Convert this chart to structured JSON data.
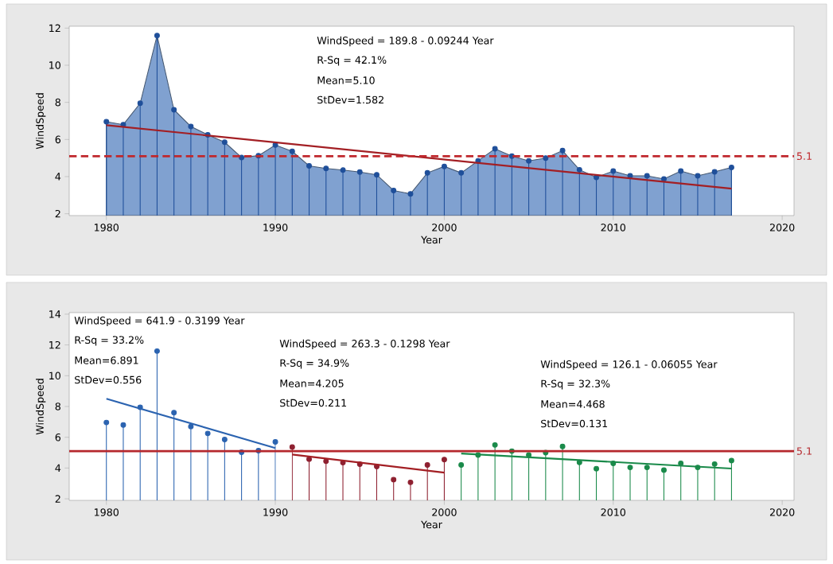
{
  "chart_data": [
    {
      "type": "area",
      "xlabel": "Year",
      "ylabel": "WindSpeed",
      "marker": "circle",
      "xlim": [
        1977.8,
        2020.7
      ],
      "ylim": [
        1.9,
        12.1
      ],
      "xticks": [
        1980,
        1990,
        2000,
        2010,
        2020
      ],
      "yticks": [
        2,
        4,
        6,
        8,
        10,
        12
      ],
      "series": [
        {
          "marker": "none",
          "color": "#80a1d0",
          "x": [
            1980,
            1981,
            1982,
            1983,
            1984,
            1985,
            1986,
            1987,
            1988,
            1989,
            1990,
            1991,
            1992,
            1993,
            1994,
            1995,
            1996,
            1997,
            1998,
            1999,
            2000,
            2001,
            2002,
            2003,
            2004,
            2005,
            2006,
            2007,
            2008,
            2009,
            2010,
            2011,
            2012,
            2013,
            2014,
            2015,
            2016,
            2017
          ],
          "values": [
            6.96,
            6.8,
            7.95,
            11.6,
            7.6,
            6.7,
            6.25,
            5.85,
            5.03,
            5.13,
            5.7,
            5.36,
            4.58,
            4.44,
            4.35,
            4.25,
            4.1,
            3.25,
            3.07,
            4.2,
            4.55,
            4.2,
            4.85,
            5.5,
            5.1,
            4.85,
            5.0,
            5.4,
            4.37,
            3.96,
            4.3,
            4.04,
            4.04,
            3.87,
            4.3,
            4.04,
            4.26,
            4.49
          ]
        },
        {
          "type": "lollipop",
          "color": "#1f4f9a",
          "x": [
            1980,
            1981,
            1982,
            1983,
            1984,
            1985,
            1986,
            1987,
            1988,
            1989,
            1990,
            1991,
            1992,
            1993,
            1994,
            1995,
            1996,
            1997,
            1998,
            1999,
            2000,
            2001,
            2002,
            2003,
            2004,
            2005,
            2006,
            2007,
            2008,
            2009,
            2010,
            2011,
            2012,
            2013,
            2014,
            2015,
            2016,
            2017
          ],
          "values": [
            6.96,
            6.8,
            7.95,
            11.6,
            7.6,
            6.7,
            6.25,
            5.85,
            5.03,
            5.13,
            5.7,
            5.36,
            4.58,
            4.44,
            4.35,
            4.25,
            4.1,
            3.25,
            3.07,
            4.2,
            4.55,
            4.2,
            4.85,
            5.5,
            5.1,
            4.85,
            5.0,
            5.4,
            4.37,
            3.96,
            4.3,
            4.04,
            4.04,
            3.87,
            4.3,
            4.04,
            4.26,
            4.49
          ]
        },
        {
          "type": "line",
          "marker": "none",
          "color": "#a31f24",
          "x": [
            1980,
            2017
          ],
          "values": [
            6.77,
            3.35
          ]
        }
      ],
      "ref_lines": [
        {
          "axis": "y",
          "value": 5.1,
          "label": "5.1",
          "color": "#c0282d",
          "line_style": "dashed"
        }
      ],
      "annotations": [
        "WindSpeed = 189.8 - 0.09244 Year",
        "R-Sq = 42.1%",
        "Mean=5.10",
        "StDev=1.582"
      ]
    },
    {
      "type": "lollipop",
      "xlabel": "Year",
      "ylabel": "WindSpeed",
      "marker": "circle",
      "xlim": [
        1977.8,
        2020.7
      ],
      "ylim": [
        1.9,
        14.1
      ],
      "xticks": [
        1980,
        1990,
        2000,
        2010,
        2020
      ],
      "yticks": [
        2,
        4,
        6,
        8,
        10,
        12,
        14
      ],
      "series": [
        {
          "color": "#2b63b0",
          "x": [
            1980,
            1981,
            1982,
            1983,
            1984,
            1985,
            1986,
            1987,
            1988,
            1989,
            1990
          ],
          "values": [
            6.96,
            6.8,
            7.95,
            11.6,
            7.6,
            6.7,
            6.25,
            5.85,
            5.03,
            5.13,
            5.7
          ]
        },
        {
          "type": "lollipop",
          "color": "#8e2030",
          "x": [
            1991,
            1992,
            1993,
            1994,
            1995,
            1996,
            1997,
            1998,
            1999,
            2000
          ],
          "values": [
            5.36,
            4.58,
            4.44,
            4.35,
            4.25,
            4.1,
            3.25,
            3.07,
            4.2,
            4.55
          ]
        },
        {
          "type": "lollipop",
          "color": "#1a8a4a",
          "x": [
            2001,
            2002,
            2003,
            2004,
            2005,
            2006,
            2007,
            2008,
            2009,
            2010,
            2011,
            2012,
            2013,
            2014,
            2015,
            2016,
            2017
          ],
          "values": [
            4.2,
            4.85,
            5.5,
            5.1,
            4.85,
            5.0,
            5.4,
            4.37,
            3.96,
            4.3,
            4.04,
            4.04,
            3.87,
            4.3,
            4.04,
            4.26,
            4.49
          ]
        },
        {
          "type": "line",
          "marker": "none",
          "color": "#2b63b0",
          "x": [
            1980,
            1990
          ],
          "values": [
            8.5,
            5.3
          ]
        },
        {
          "type": "line",
          "marker": "none",
          "color": "#a31f24",
          "x": [
            1991,
            2000
          ],
          "values": [
            4.88,
            3.7
          ]
        },
        {
          "type": "line",
          "marker": "none",
          "color": "#1a8a4a",
          "x": [
            2001,
            2017
          ],
          "values": [
            4.94,
            3.97
          ]
        }
      ],
      "ref_lines": [
        {
          "axis": "y",
          "value": 5.1,
          "label": "5.1",
          "color": "#b5282d",
          "line_style": "solid"
        }
      ],
      "annotations": [
        "WindSpeed = 641.9 - 0.3199 Year",
        "R-Sq = 33.2%",
        "Mean=6.891",
        "StDev=0.556",
        "WindSpeed = 263.3 - 0.1298 Year",
        "R-Sq = 34.9%",
        "Mean=4.205",
        "StDev=0.211",
        "WindSpeed = 126.1 - 0.06055 Year",
        "R-Sq = 32.3%",
        "Mean=4.468",
        "StDev=0.131"
      ]
    }
  ]
}
